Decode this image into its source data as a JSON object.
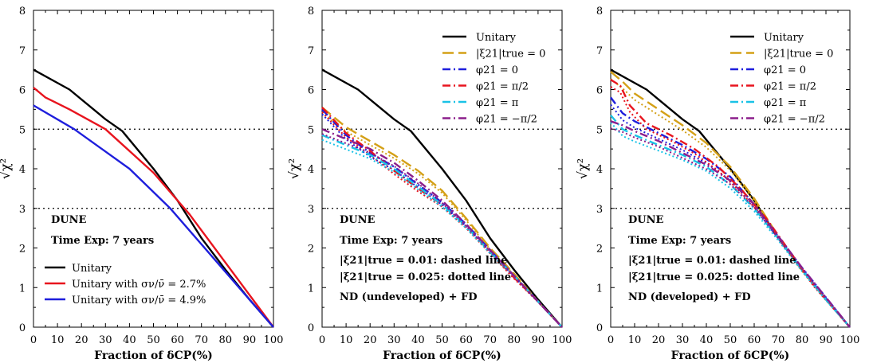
{
  "chart_data": [
    {
      "type": "line",
      "xlabel": "Fraction of δCP(%)",
      "ylabel": "√χ²",
      "xlim": [
        0,
        100
      ],
      "ylim": [
        0,
        8
      ],
      "xticks": [
        "0",
        "10",
        "20",
        "30",
        "40",
        "50",
        "60",
        "70",
        "80",
        "90",
        "100"
      ],
      "yticks": [
        "0",
        "1",
        "2",
        "3",
        "4",
        "5",
        "6",
        "7",
        "8"
      ],
      "reference_lines": [
        3,
        5
      ],
      "annotations": [
        "DUNE",
        "Time Exp: 7 years"
      ],
      "legend_position": "bottom-left",
      "series": [
        {
          "name": "Unitary",
          "color": "#000000",
          "style": "solid",
          "x": [
            0,
            15,
            30,
            37,
            50,
            60,
            70,
            80,
            90,
            100
          ],
          "y": [
            6.5,
            6.0,
            5.25,
            4.95,
            4.0,
            3.2,
            2.25,
            1.45,
            0.7,
            0.0
          ]
        },
        {
          "name": "Unitary with σν/ν̄ = 2.7%",
          "color": "#e8141e",
          "style": "solid",
          "x": [
            0,
            5,
            15,
            30,
            50,
            65,
            100
          ],
          "y": [
            6.05,
            5.8,
            5.5,
            5.0,
            3.9,
            2.85,
            0.0
          ]
        },
        {
          "name": "Unitary with σν/ν̄ = 4.9%",
          "color": "#1e1edc",
          "style": "solid",
          "x": [
            0,
            17,
            40,
            57,
            100
          ],
          "y": [
            5.6,
            5.0,
            4.0,
            3.0,
            0.0
          ]
        }
      ]
    },
    {
      "type": "line",
      "xlabel": "Fraction of δCP(%)",
      "ylabel": "√χ²",
      "xlim": [
        0,
        100
      ],
      "ylim": [
        0,
        8
      ],
      "xticks": [
        "0",
        "10",
        "20",
        "30",
        "40",
        "50",
        "60",
        "70",
        "80",
        "90",
        "100"
      ],
      "yticks": [
        "0",
        "1",
        "2",
        "3",
        "4",
        "5",
        "6",
        "7",
        "8"
      ],
      "reference_lines": [
        3,
        5
      ],
      "annotations": [
        "DUNE",
        "Time Exp: 7 years",
        "|ξ21|true = 0.01: dashed line",
        "|ξ21|true = 0.025: dotted line",
        "ND (undeveloped) + FD"
      ],
      "legend_position": "top-right",
      "series": [
        {
          "name": "Unitary",
          "color": "#000000",
          "style": "solid",
          "x": [
            0,
            15,
            30,
            37,
            50,
            60,
            70,
            80,
            90,
            100
          ],
          "y": [
            6.5,
            6.0,
            5.25,
            4.95,
            4.0,
            3.2,
            2.25,
            1.45,
            0.7,
            0.0
          ]
        },
        {
          "name": "|ξ21|true = 0",
          "color": "#d4a017",
          "style": "longdash",
          "x": [
            0,
            10,
            20,
            30,
            40,
            50,
            60,
            70,
            80,
            90,
            100
          ],
          "y": [
            5.55,
            5.05,
            4.7,
            4.35,
            3.95,
            3.45,
            2.75,
            2.0,
            1.35,
            0.65,
            0.0
          ]
        },
        {
          "name": "φ21 = 0",
          "color": "#1e1edc",
          "style": "dashdot",
          "x": [
            0,
            10,
            20,
            30,
            40,
            50,
            60,
            70,
            80,
            90,
            100
          ],
          "y": [
            5.5,
            4.85,
            4.4,
            4.05,
            3.6,
            3.15,
            2.6,
            1.95,
            1.3,
            0.65,
            0.0
          ]
        },
        {
          "name": "φ21 = π/2",
          "color": "#e8141e",
          "style": "dashdot",
          "x": [
            0,
            10,
            20,
            30,
            40,
            50,
            60,
            70,
            80,
            90,
            100
          ],
          "y": [
            5.55,
            4.9,
            4.45,
            3.95,
            3.5,
            3.1,
            2.55,
            1.9,
            1.25,
            0.65,
            0.0
          ]
        },
        {
          "name": "φ21 = π",
          "color": "#19c2e6",
          "style": "dashdot",
          "x": [
            0,
            10,
            20,
            30,
            40,
            50,
            60,
            70,
            80,
            90,
            100
          ],
          "y": [
            4.85,
            4.6,
            4.35,
            4.0,
            3.55,
            3.1,
            2.55,
            1.9,
            1.3,
            0.65,
            0.0
          ]
        },
        {
          "name": "φ21 = −π/2",
          "color": "#8b1e8b",
          "style": "dashdot",
          "x": [
            0,
            10,
            20,
            30,
            40,
            50,
            60,
            70,
            80,
            90,
            100
          ],
          "y": [
            5.0,
            4.75,
            4.5,
            4.15,
            3.7,
            3.2,
            2.6,
            1.95,
            1.3,
            0.65,
            0.0
          ]
        }
      ]
    },
    {
      "type": "line",
      "xlabel": "Fraction of δCP(%)",
      "ylabel": "√χ²",
      "xlim": [
        0,
        100
      ],
      "ylim": [
        0,
        8
      ],
      "xticks": [
        "0",
        "10",
        "20",
        "30",
        "40",
        "50",
        "60",
        "70",
        "80",
        "90",
        "100"
      ],
      "yticks": [
        "0",
        "1",
        "2",
        "3",
        "4",
        "5",
        "6",
        "7",
        "8"
      ],
      "reference_lines": [
        3,
        5
      ],
      "annotations": [
        "DUNE",
        "Time Exp: 7 years",
        "|ξ21|true = 0.01: dashed line",
        "|ξ21|true = 0.025: dotted line",
        "ND (developed) + FD"
      ],
      "legend_position": "top-right",
      "series": [
        {
          "name": "Unitary",
          "color": "#000000",
          "style": "solid",
          "x": [
            0,
            15,
            30,
            37,
            50,
            60,
            70,
            80,
            90,
            100
          ],
          "y": [
            6.5,
            6.0,
            5.25,
            4.95,
            4.0,
            3.2,
            2.25,
            1.45,
            0.7,
            0.0
          ]
        },
        {
          "name": "|ξ21|true = 0",
          "color": "#d4a017",
          "style": "longdash",
          "x": [
            0,
            5,
            10,
            20,
            30,
            40,
            50,
            60,
            70,
            80,
            90,
            100
          ],
          "y": [
            6.45,
            6.2,
            5.9,
            5.5,
            5.1,
            4.65,
            4.05,
            3.25,
            2.3,
            1.45,
            0.7,
            0.0
          ]
        },
        {
          "name": "φ21 = 0",
          "color": "#1e1edc",
          "style": "dashdot",
          "x": [
            0,
            5,
            10,
            20,
            30,
            40,
            50,
            60,
            70,
            80,
            90,
            100
          ],
          "y": [
            5.8,
            5.4,
            5.2,
            4.9,
            4.6,
            4.25,
            3.8,
            3.1,
            2.3,
            1.5,
            0.75,
            0.0
          ]
        },
        {
          "name": "φ21 = π/2",
          "color": "#e8141e",
          "style": "dashdot",
          "x": [
            0,
            4,
            8,
            15,
            25,
            35,
            45,
            55,
            65,
            75,
            85,
            100
          ],
          "y": [
            6.25,
            6.1,
            5.6,
            5.15,
            4.85,
            4.5,
            4.05,
            3.45,
            2.75,
            1.9,
            1.05,
            0.0
          ]
        },
        {
          "name": "φ21 = π",
          "color": "#19c2e6",
          "style": "dashdot",
          "x": [
            0,
            5,
            10,
            20,
            30,
            40,
            50,
            60,
            70,
            80,
            90,
            100
          ],
          "y": [
            5.35,
            5.0,
            4.85,
            4.6,
            4.35,
            4.05,
            3.6,
            3.0,
            2.25,
            1.45,
            0.7,
            0.0
          ]
        },
        {
          "name": "φ21 = −π/2",
          "color": "#8b1e8b",
          "style": "dashdot",
          "x": [
            0,
            5,
            10,
            20,
            30,
            40,
            50,
            60,
            70,
            80,
            90,
            100
          ],
          "y": [
            5.2,
            5.1,
            4.95,
            4.7,
            4.4,
            4.1,
            3.7,
            3.1,
            2.3,
            1.5,
            0.75,
            0.0
          ]
        }
      ]
    }
  ]
}
